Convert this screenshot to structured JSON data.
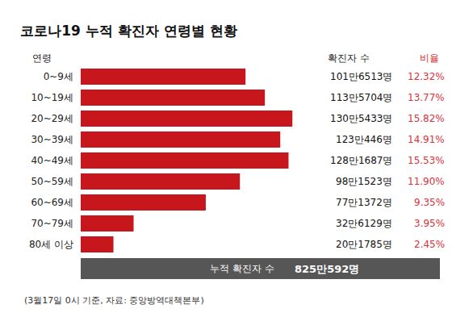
{
  "chart_data": {
    "type": "bar",
    "orientation": "horizontal",
    "title": "코로나19 누적 확진자 연령별 현황",
    "column_headers": [
      "연령",
      "확진자 수",
      "비율"
    ],
    "categories": [
      "0~9세",
      "10~19세",
      "20~29세",
      "30~39세",
      "40~49세",
      "50~59세",
      "60~69세",
      "70~79세",
      "80세 이상"
    ],
    "values": [
      1016513,
      1135704,
      1305433,
      1230446,
      1281687,
      981523,
      771372,
      326129,
      201785
    ],
    "value_labels": [
      "101만6513명",
      "113만5704명",
      "130만5433명",
      "123만446명",
      "128만1687명",
      "98만1523명",
      "77만1372명",
      "32만6129명",
      "20만1785명"
    ],
    "shares": [
      12.32,
      13.77,
      15.82,
      14.91,
      15.53,
      11.9,
      9.35,
      3.95,
      2.45
    ],
    "share_labels": [
      "12.32%",
      "13.77%",
      "15.82%",
      "14.91%",
      "15.53%",
      "11.90%",
      "9.35%",
      "3.95%",
      "2.45%"
    ],
    "total": {
      "label": "누적 확진자 수",
      "value_label": "825만592명"
    },
    "source": "(3월17일 0시 기준, 자료: 중앙방역대책본부)",
    "color": "#c8161d",
    "xlim": [
      0,
      2240000
    ],
    "data_labels": true,
    "tick_labels": "y",
    "grid": false
  }
}
